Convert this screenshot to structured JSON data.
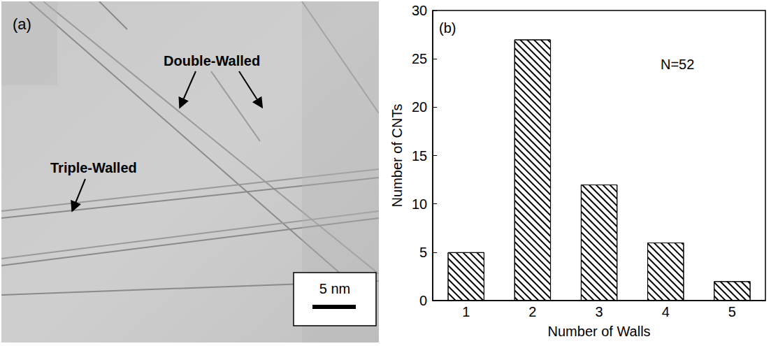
{
  "image_panel": {
    "panel_label": "(a)",
    "labels": [
      "Double-Walled",
      "Triple-Walled"
    ],
    "scale_bar": "5 nm"
  },
  "chart_data": {
    "type": "bar",
    "panel_label": "(b)",
    "annotations": [
      "N=52"
    ],
    "x_label": "Number of Walls",
    "y_label": "Number of CNTs",
    "categories": [
      "1",
      "2",
      "3",
      "4",
      "5"
    ],
    "values": [
      5,
      27,
      12,
      6,
      2
    ],
    "color": "#000000",
    "ylim": [
      0,
      30
    ],
    "yticks": [
      0,
      5,
      10,
      15,
      20,
      25,
      30
    ],
    "grid": false
  }
}
